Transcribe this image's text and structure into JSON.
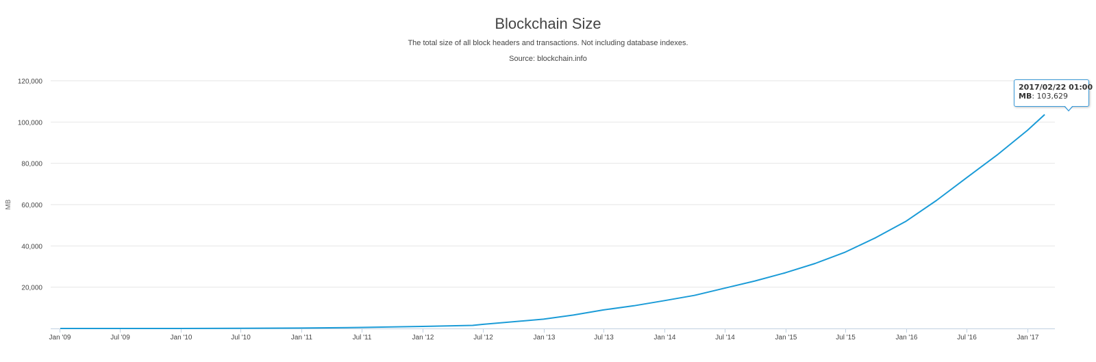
{
  "chart_data": {
    "type": "line",
    "title": "Blockchain Size",
    "subtitle": "The total size of all block headers and transactions. Not including database indexes.",
    "source": "Source: blockchain.info",
    "ylabel": "MB",
    "xlabel": "",
    "ylim": [
      0,
      120000
    ],
    "yticks": [
      20000,
      40000,
      60000,
      80000,
      100000,
      120000
    ],
    "ytick_labels": [
      "20,000",
      "40,000",
      "60,000",
      "80,000",
      "100,000",
      "120,000"
    ],
    "xticks": [
      "2009-01-01",
      "2009-07-01",
      "2010-01-01",
      "2010-07-01",
      "2011-01-01",
      "2011-07-01",
      "2012-01-01",
      "2012-07-01",
      "2013-01-01",
      "2013-07-01",
      "2014-01-01",
      "2014-07-01",
      "2015-01-01",
      "2015-07-01",
      "2016-01-01",
      "2016-07-01",
      "2017-01-01"
    ],
    "xtick_labels": [
      "Jan '09",
      "Jul '09",
      "Jan '10",
      "Jul '10",
      "Jan '11",
      "Jul '11",
      "Jan '12",
      "Jul '12",
      "Jan '13",
      "Jul '13",
      "Jan '14",
      "Jul '14",
      "Jan '15",
      "Jul '15",
      "Jan '16",
      "Jul '16",
      "Jan '17"
    ],
    "grid": true,
    "line_color": "#1a9bd7",
    "series": [
      {
        "x": [
          "2009-01-03",
          "2010-01-01",
          "2010-07-01",
          "2011-01-01",
          "2011-07-01",
          "2012-01-01",
          "2012-06-01",
          "2012-07-01",
          "2013-01-01",
          "2013-04-01",
          "2013-07-01",
          "2013-10-01",
          "2014-01-01",
          "2014-04-01",
          "2014-07-01",
          "2014-10-01",
          "2015-01-01",
          "2015-04-01",
          "2015-07-01",
          "2015-10-01",
          "2016-01-01",
          "2016-04-01",
          "2016-07-01",
          "2016-10-01",
          "2017-01-01",
          "2017-02-22"
        ],
        "y": [
          0,
          10,
          50,
          200,
          500,
          1000,
          1500,
          2000,
          4500,
          6500,
          9000,
          11000,
          13500,
          16000,
          19500,
          23000,
          27000,
          31500,
          37000,
          44000,
          52000,
          62000,
          73000,
          84000,
          96000,
          103629
        ]
      }
    ],
    "tooltip": {
      "when": "2017/02/22 01:00",
      "unit": "MB",
      "value": "103,629"
    }
  }
}
